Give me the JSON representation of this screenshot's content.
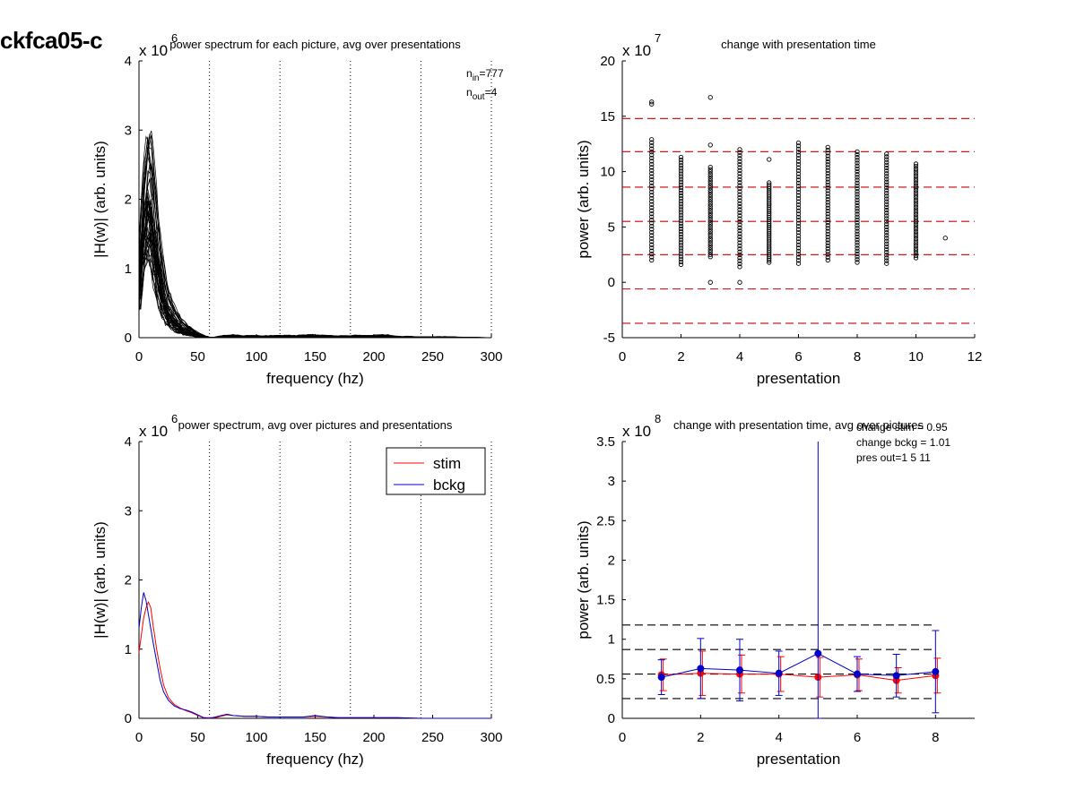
{
  "page": {
    "title": "ckfca05-c"
  },
  "chart_data": [
    {
      "id": "tl",
      "type": "line",
      "title": "power spectrum for each picture, avg over presentations",
      "xlabel": "frequency (hz)",
      "ylabel": "|H(w)| (arb. units)",
      "exponent_label": "x 10",
      "exponent_power": "6",
      "xlim": [
        0,
        300
      ],
      "ylim": [
        0,
        4
      ],
      "xticks": [
        0,
        50,
        100,
        150,
        200,
        250,
        300
      ],
      "yticks": [
        0,
        1,
        2,
        3,
        4
      ],
      "vlines": [
        60,
        120,
        180,
        240,
        300
      ],
      "annotations": [
        {
          "base": "n",
          "sub": "in",
          "text": "=777"
        },
        {
          "base": "n",
          "sub": "out",
          "text": "=4"
        }
      ],
      "series_description": "777 individual spectra (black), peaking near 5-10 Hz at values up to about 3.1, decaying to near 0 by about 55 Hz",
      "envelope": {
        "x": [
          0,
          2,
          4,
          6,
          8,
          10,
          12,
          15,
          18,
          21,
          25,
          30,
          35,
          40,
          45,
          50,
          55,
          60,
          65,
          70,
          75,
          80,
          90,
          100,
          120,
          140,
          150,
          160,
          180,
          200,
          210,
          220,
          240,
          260,
          280,
          300
        ],
        "upper": [
          1.0,
          2.0,
          2.5,
          2.9,
          3.15,
          3.05,
          2.6,
          1.95,
          1.4,
          1.0,
          0.7,
          0.45,
          0.3,
          0.2,
          0.13,
          0.07,
          0.03,
          0.01,
          0.01,
          0.04,
          0.06,
          0.05,
          0.04,
          0.04,
          0.04,
          0.05,
          0.06,
          0.04,
          0.04,
          0.05,
          0.06,
          0.03,
          0.02,
          0.02,
          0.01,
          0.0
        ],
        "lower": [
          0.3,
          0.6,
          0.9,
          1.0,
          1.05,
          1.0,
          0.85,
          0.6,
          0.4,
          0.25,
          0.15,
          0.09,
          0.05,
          0.03,
          0.02,
          0.01,
          0.0,
          0.0,
          0.0,
          0.0,
          0.0,
          0.0,
          0.0,
          0.0,
          0.0,
          0.0,
          0.0,
          0.0,
          0.0,
          0.0,
          0.0,
          0.0,
          0.0,
          0.0,
          0.0,
          0.0
        ]
      }
    },
    {
      "id": "tr",
      "type": "scatter",
      "title": "change with presentation time",
      "xlabel": "presentation",
      "ylabel": "power (arb. units)",
      "exponent_label": "x 10",
      "exponent_power": "7",
      "xlim": [
        0,
        12
      ],
      "ylim": [
        -5,
        20
      ],
      "xticks": [
        0,
        2,
        4,
        6,
        8,
        10,
        12
      ],
      "yticks": [
        -5,
        0,
        5,
        10,
        15,
        20
      ],
      "hlines": [
        14.8,
        11.8,
        8.6,
        5.5,
        2.5,
        -0.6,
        -3.7
      ],
      "hline_xrange": [
        0,
        12.0
      ],
      "columns": [
        {
          "x": 1,
          "min": 2.0,
          "max": 12.9,
          "outliers": [
            16.1,
            16.3
          ]
        },
        {
          "x": 2,
          "min": 1.6,
          "max": 11.3,
          "outliers": []
        },
        {
          "x": 3,
          "min": 2.3,
          "max": 10.4,
          "outliers": [
            12.4,
            16.7,
            0.0
          ]
        },
        {
          "x": 4,
          "min": 1.4,
          "max": 12.0,
          "outliers": [
            0.0
          ]
        },
        {
          "x": 5,
          "min": 1.8,
          "max": 9.0,
          "outliers": [
            11.1
          ]
        },
        {
          "x": 6,
          "min": 1.7,
          "max": 12.6,
          "outliers": []
        },
        {
          "x": 7,
          "min": 2.0,
          "max": 12.2,
          "outliers": []
        },
        {
          "x": 8,
          "min": 1.8,
          "max": 11.8,
          "outliers": []
        },
        {
          "x": 9,
          "min": 1.7,
          "max": 11.6,
          "outliers": []
        },
        {
          "x": 10,
          "min": 2.2,
          "max": 10.7,
          "outliers": []
        },
        {
          "x": 11,
          "min": 4.0,
          "max": 4.0,
          "outliers": []
        }
      ]
    },
    {
      "id": "bl",
      "type": "line",
      "title": "power spectrum, avg over pictures and presentations",
      "xlabel": "frequency (hz)",
      "ylabel": "|H(w)| (arb. units)",
      "exponent_label": "x 10",
      "exponent_power": "6",
      "xlim": [
        0,
        300
      ],
      "ylim": [
        0,
        4
      ],
      "xticks": [
        0,
        50,
        100,
        150,
        200,
        250,
        300
      ],
      "yticks": [
        0,
        1,
        2,
        3,
        4
      ],
      "vlines": [
        60,
        120,
        180,
        240,
        300
      ],
      "legend": {
        "position": "top-right"
      },
      "series": [
        {
          "name": "stim",
          "color": "#ff0000",
          "x": [
            0,
            2,
            4,
            6,
            8,
            10,
            12,
            15,
            18,
            21,
            25,
            30,
            35,
            40,
            45,
            50,
            55,
            60,
            65,
            70,
            75,
            80,
            90,
            100,
            110,
            120,
            130,
            140,
            150,
            160,
            170,
            180,
            200,
            220,
            240,
            260,
            280,
            300
          ],
          "y": [
            0.95,
            1.2,
            1.45,
            1.6,
            1.68,
            1.6,
            1.35,
            1.0,
            0.72,
            0.48,
            0.3,
            0.2,
            0.15,
            0.11,
            0.08,
            0.04,
            0.01,
            0.01,
            0.01,
            0.03,
            0.05,
            0.04,
            0.03,
            0.03,
            0.02,
            0.02,
            0.02,
            0.02,
            0.03,
            0.02,
            0.01,
            0.01,
            0.01,
            0.01,
            0.0,
            0.0,
            0.0,
            0.0
          ]
        },
        {
          "name": "bckg",
          "color": "#0000cc",
          "x": [
            0,
            2,
            4,
            6,
            8,
            10,
            12,
            15,
            18,
            21,
            25,
            30,
            35,
            40,
            45,
            50,
            55,
            60,
            65,
            70,
            75,
            80,
            90,
            100,
            110,
            120,
            130,
            140,
            150,
            160,
            170,
            180,
            200,
            220,
            240,
            260,
            280,
            300
          ],
          "y": [
            1.3,
            1.6,
            1.82,
            1.7,
            1.5,
            1.3,
            1.1,
            0.82,
            0.55,
            0.38,
            0.26,
            0.18,
            0.14,
            0.12,
            0.09,
            0.05,
            0.01,
            0.0,
            0.02,
            0.04,
            0.06,
            0.04,
            0.03,
            0.03,
            0.02,
            0.02,
            0.02,
            0.02,
            0.04,
            0.02,
            0.01,
            0.01,
            0.01,
            0.01,
            0.0,
            0.0,
            0.0,
            0.0
          ]
        }
      ]
    },
    {
      "id": "br",
      "type": "line",
      "title": "change with presentation time, avg over pictures",
      "xlabel": "presentation",
      "ylabel": "power (arb. units)",
      "exponent_label": "x 10",
      "exponent_power": "8",
      "xlim": [
        0,
        9
      ],
      "ylim": [
        0,
        3.5
      ],
      "xticks": [
        0,
        2,
        4,
        6,
        8
      ],
      "yticks": [
        0,
        0.5,
        1,
        1.5,
        2,
        2.5,
        3,
        3.5
      ],
      "ytick_labels": [
        "0",
        "0.5",
        "1",
        "1.5",
        "2",
        "2.5",
        "3",
        "3.5"
      ],
      "hlines": [
        1.18,
        0.87,
        0.56,
        0.25
      ],
      "hline_xrange": [
        0,
        8.0
      ],
      "annotations": [
        "change stim = 0.95",
        "change bckg = 1.01",
        "pres out=1 5 11"
      ],
      "series": [
        {
          "name": "stim",
          "color": "#ff0000",
          "x": [
            1,
            2,
            3,
            4,
            5,
            6,
            7,
            8
          ],
          "y": [
            0.55,
            0.57,
            0.56,
            0.56,
            0.52,
            0.55,
            0.48,
            0.54
          ],
          "err": [
            0.2,
            0.28,
            0.24,
            0.22,
            0.25,
            0.2,
            0.16,
            0.22
          ]
        },
        {
          "name": "bckg",
          "color": "#0000cc",
          "x": [
            1,
            2,
            3,
            4,
            5,
            6,
            7,
            8
          ],
          "y": [
            0.52,
            0.63,
            0.61,
            0.57,
            0.82,
            0.56,
            0.54,
            0.59
          ],
          "err": [
            0.22,
            0.38,
            0.39,
            0.28,
            3.6,
            0.22,
            0.27,
            0.52
          ]
        }
      ]
    }
  ]
}
